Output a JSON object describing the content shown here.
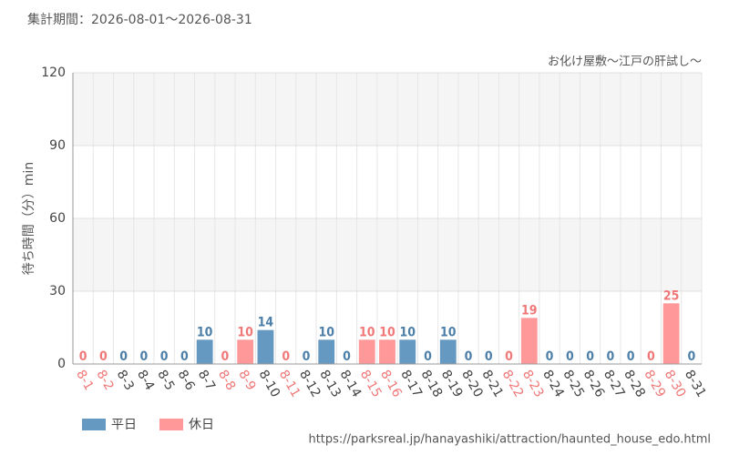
{
  "header": "集計期間：2026-08-01～2026-08-31",
  "chart_data": {
    "type": "bar",
    "subtitle": "お化け屋敷～江戸の肝試し～",
    "y_label": "待ち時間（分）min",
    "categories": [
      "8-1",
      "8-2",
      "8-3",
      "8-4",
      "8-5",
      "8-6",
      "8-7",
      "8-8",
      "8-9",
      "8-10",
      "8-11",
      "8-12",
      "8-13",
      "8-14",
      "8-15",
      "8-16",
      "8-17",
      "8-18",
      "8-19",
      "8-20",
      "8-21",
      "8-22",
      "8-23",
      "8-24",
      "8-25",
      "8-26",
      "8-27",
      "8-28",
      "8-29",
      "8-30",
      "8-31"
    ],
    "series": [
      {
        "name": "平日",
        "color": "#6699c2",
        "values": [
          null,
          null,
          0,
          0,
          0,
          0,
          10,
          null,
          null,
          14,
          null,
          0,
          10,
          0,
          null,
          null,
          10,
          0,
          10,
          0,
          0,
          null,
          null,
          0,
          0,
          0,
          0,
          0,
          null,
          null,
          0
        ]
      },
      {
        "name": "休日",
        "color": "#ff9999",
        "values": [
          0,
          0,
          null,
          null,
          null,
          null,
          null,
          0,
          10,
          null,
          0,
          null,
          null,
          null,
          10,
          10,
          null,
          null,
          null,
          null,
          null,
          0,
          19,
          null,
          null,
          null,
          null,
          null,
          0,
          25,
          null
        ]
      }
    ],
    "ylim": [
      0,
      120
    ],
    "yticks": [
      0,
      30,
      60,
      90,
      120
    ],
    "grid": true,
    "legend": "bottom-left"
  },
  "footer": "https://parksreal.jp/hanayashiki/attraction/haunted_house_edo.html"
}
